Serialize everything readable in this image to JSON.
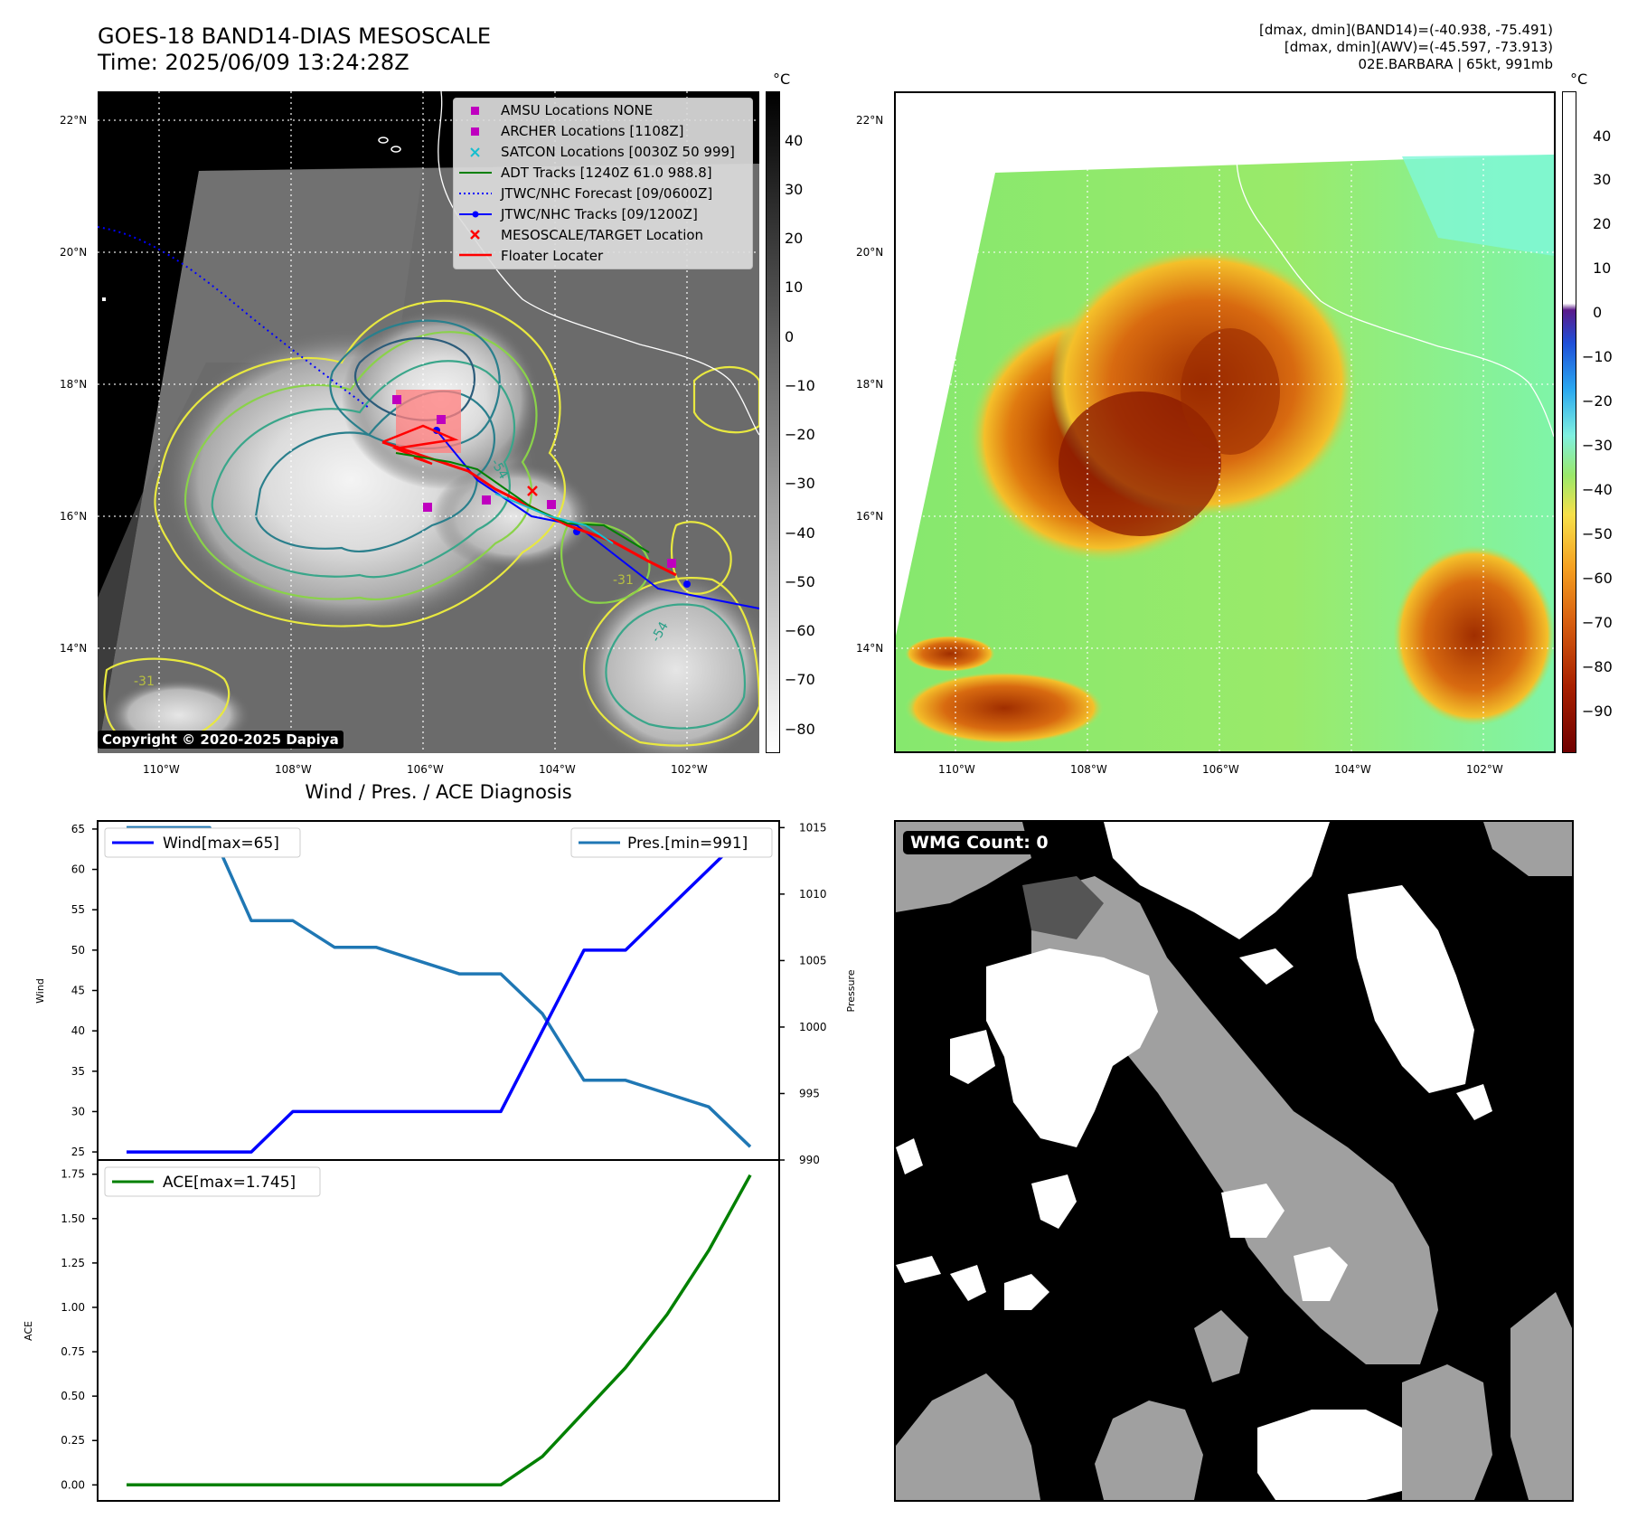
{
  "header": {
    "title_line1": "GOES-18 BAND14-DIAS MESOSCALE",
    "title_line2": "Time: 2025/06/09 13:24:28Z",
    "info_line1": "[dmax, dmin](BAND14)=(-40.938, -75.491)",
    "info_line2": "[dmax, dmin](AWV)=(-45.597, -73.913)",
    "info_line3": "02E.BARBARA | 65kt, 991mb"
  },
  "map_axes": {
    "lon_ticks": [
      "110°W",
      "108°W",
      "106°W",
      "104°W",
      "102°W"
    ],
    "lat_ticks": [
      "22°N",
      "20°N",
      "18°N",
      "16°N",
      "14°N"
    ]
  },
  "left_map": {
    "colorbar_unit": "°C",
    "colorbar_ticks": [
      "40",
      "30",
      "20",
      "10",
      "0",
      "−10",
      "−20",
      "−30",
      "−40",
      "−50",
      "−60",
      "−70",
      "−80"
    ],
    "contour_labels": [
      "-31",
      "-54"
    ],
    "legend": [
      {
        "label": "AMSU Locations NONE",
        "marker": "square",
        "color": "#bf00bf"
      },
      {
        "label": "ARCHER Locations [1108Z]",
        "marker": "square",
        "color": "#bf00bf"
      },
      {
        "label": "SATCON Locations [0030Z 50 999]",
        "marker": "x",
        "color": "#17becf"
      },
      {
        "label": "ADT Tracks [1240Z 61.0 988.8]",
        "marker": "line",
        "color": "#008000"
      },
      {
        "label": "JTWC/NHC Forecast [09/0600Z]",
        "marker": "dotted",
        "color": "#0000ff"
      },
      {
        "label": "JTWC/NHC Tracks [09/1200Z]",
        "marker": "line-dot",
        "color": "#0000ff"
      },
      {
        "label": "MESOSCALE/TARGET Location",
        "marker": "x",
        "color": "#ff0000"
      },
      {
        "label": "Floater Locater",
        "marker": "line",
        "color": "#ff0000"
      }
    ],
    "copyright": "Copyright © 2020-2025 Dapiya"
  },
  "right_map": {
    "colorbar_unit": "°C",
    "colorbar_ticks": [
      "40",
      "30",
      "20",
      "10",
      "0",
      "−10",
      "−20",
      "−30",
      "−40",
      "−50",
      "−60",
      "−70",
      "−80",
      "−90"
    ]
  },
  "wmg_panel": {
    "label": "WMG Count: 0"
  },
  "chart_data": [
    {
      "type": "line",
      "title": "Wind / Pres. / ACE Diagnosis",
      "ylabel": "Wind",
      "y2label": "Pressure",
      "ylim": [
        24,
        66
      ],
      "y2lim": [
        990,
        1015.5
      ],
      "yticks": [
        25,
        30,
        35,
        40,
        45,
        50,
        55,
        60,
        65
      ],
      "y2ticks": [
        990,
        995,
        1000,
        1005,
        1010,
        1015
      ],
      "x": [
        0,
        1,
        2,
        3,
        4,
        5,
        6,
        7,
        8,
        9,
        10,
        11,
        12,
        13,
        14,
        15
      ],
      "series": [
        {
          "name": "Wind[max=65]",
          "axis": "left",
          "color": "#0000ff",
          "values": [
            25,
            25,
            25,
            25,
            30,
            30,
            30,
            30,
            30,
            30,
            40,
            50,
            50,
            55,
            60,
            65
          ]
        },
        {
          "name": "Pres.[min=991]",
          "axis": "right",
          "color": "#1f77b4",
          "values": [
            1015,
            1015,
            1015,
            1008,
            1008,
            1006,
            1006,
            1005,
            1004,
            1004,
            1001,
            996,
            996,
            995,
            994,
            991
          ]
        }
      ],
      "legend": [
        "top-left",
        "top-right"
      ]
    },
    {
      "type": "line",
      "ylabel": "ACE",
      "ylim": [
        -0.09,
        1.83
      ],
      "yticks": [
        "0.00",
        "0.25",
        "0.50",
        "0.75",
        "1.00",
        "1.25",
        "1.50",
        "1.75"
      ],
      "x": [
        0,
        1,
        2,
        3,
        4,
        5,
        6,
        7,
        8,
        9,
        10,
        11,
        12,
        13,
        14,
        15
      ],
      "series": [
        {
          "name": "ACE[max=1.745]",
          "color": "#008000",
          "values": [
            0,
            0,
            0,
            0,
            0,
            0,
            0,
            0,
            0,
            0,
            0.16,
            0.41,
            0.66,
            0.96,
            1.32,
            1.745
          ]
        }
      ],
      "legend": "top-left"
    }
  ]
}
